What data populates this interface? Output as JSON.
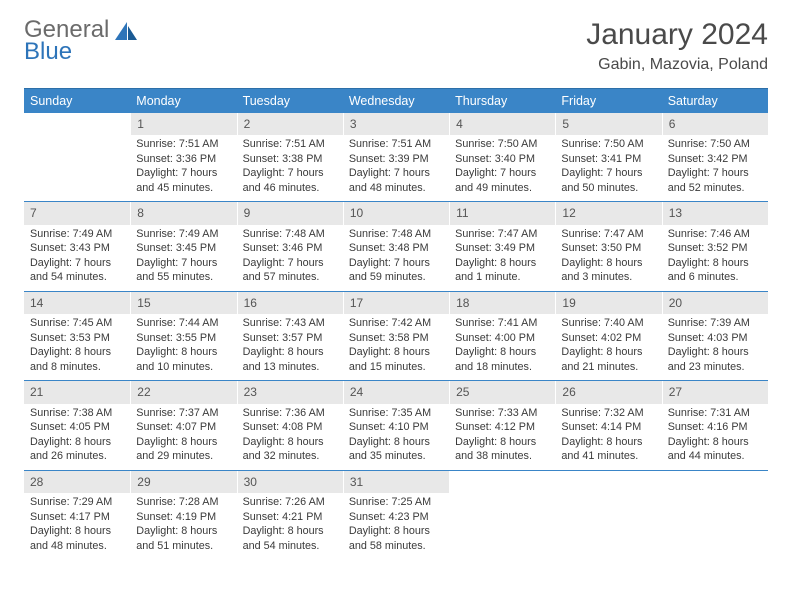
{
  "brand": {
    "part1": "General",
    "part2": "Blue"
  },
  "title": "January 2024",
  "location": "Gabin, Mazovia, Poland",
  "header_bg": "#3a85c7",
  "daynum_bg": "#e8e8e8",
  "divider_color": "#3a85c7",
  "weekdays": [
    "Sunday",
    "Monday",
    "Tuesday",
    "Wednesday",
    "Thursday",
    "Friday",
    "Saturday"
  ],
  "weeks": [
    [
      {
        "n": "",
        "lines": [
          "",
          "",
          "",
          ""
        ]
      },
      {
        "n": "1",
        "lines": [
          "Sunrise: 7:51 AM",
          "Sunset: 3:36 PM",
          "Daylight: 7 hours",
          "and 45 minutes."
        ]
      },
      {
        "n": "2",
        "lines": [
          "Sunrise: 7:51 AM",
          "Sunset: 3:38 PM",
          "Daylight: 7 hours",
          "and 46 minutes."
        ]
      },
      {
        "n": "3",
        "lines": [
          "Sunrise: 7:51 AM",
          "Sunset: 3:39 PM",
          "Daylight: 7 hours",
          "and 48 minutes."
        ]
      },
      {
        "n": "4",
        "lines": [
          "Sunrise: 7:50 AM",
          "Sunset: 3:40 PM",
          "Daylight: 7 hours",
          "and 49 minutes."
        ]
      },
      {
        "n": "5",
        "lines": [
          "Sunrise: 7:50 AM",
          "Sunset: 3:41 PM",
          "Daylight: 7 hours",
          "and 50 minutes."
        ]
      },
      {
        "n": "6",
        "lines": [
          "Sunrise: 7:50 AM",
          "Sunset: 3:42 PM",
          "Daylight: 7 hours",
          "and 52 minutes."
        ]
      }
    ],
    [
      {
        "n": "7",
        "lines": [
          "Sunrise: 7:49 AM",
          "Sunset: 3:43 PM",
          "Daylight: 7 hours",
          "and 54 minutes."
        ]
      },
      {
        "n": "8",
        "lines": [
          "Sunrise: 7:49 AM",
          "Sunset: 3:45 PM",
          "Daylight: 7 hours",
          "and 55 minutes."
        ]
      },
      {
        "n": "9",
        "lines": [
          "Sunrise: 7:48 AM",
          "Sunset: 3:46 PM",
          "Daylight: 7 hours",
          "and 57 minutes."
        ]
      },
      {
        "n": "10",
        "lines": [
          "Sunrise: 7:48 AM",
          "Sunset: 3:48 PM",
          "Daylight: 7 hours",
          "and 59 minutes."
        ]
      },
      {
        "n": "11",
        "lines": [
          "Sunrise: 7:47 AM",
          "Sunset: 3:49 PM",
          "Daylight: 8 hours",
          "and 1 minute."
        ]
      },
      {
        "n": "12",
        "lines": [
          "Sunrise: 7:47 AM",
          "Sunset: 3:50 PM",
          "Daylight: 8 hours",
          "and 3 minutes."
        ]
      },
      {
        "n": "13",
        "lines": [
          "Sunrise: 7:46 AM",
          "Sunset: 3:52 PM",
          "Daylight: 8 hours",
          "and 6 minutes."
        ]
      }
    ],
    [
      {
        "n": "14",
        "lines": [
          "Sunrise: 7:45 AM",
          "Sunset: 3:53 PM",
          "Daylight: 8 hours",
          "and 8 minutes."
        ]
      },
      {
        "n": "15",
        "lines": [
          "Sunrise: 7:44 AM",
          "Sunset: 3:55 PM",
          "Daylight: 8 hours",
          "and 10 minutes."
        ]
      },
      {
        "n": "16",
        "lines": [
          "Sunrise: 7:43 AM",
          "Sunset: 3:57 PM",
          "Daylight: 8 hours",
          "and 13 minutes."
        ]
      },
      {
        "n": "17",
        "lines": [
          "Sunrise: 7:42 AM",
          "Sunset: 3:58 PM",
          "Daylight: 8 hours",
          "and 15 minutes."
        ]
      },
      {
        "n": "18",
        "lines": [
          "Sunrise: 7:41 AM",
          "Sunset: 4:00 PM",
          "Daylight: 8 hours",
          "and 18 minutes."
        ]
      },
      {
        "n": "19",
        "lines": [
          "Sunrise: 7:40 AM",
          "Sunset: 4:02 PM",
          "Daylight: 8 hours",
          "and 21 minutes."
        ]
      },
      {
        "n": "20",
        "lines": [
          "Sunrise: 7:39 AM",
          "Sunset: 4:03 PM",
          "Daylight: 8 hours",
          "and 23 minutes."
        ]
      }
    ],
    [
      {
        "n": "21",
        "lines": [
          "Sunrise: 7:38 AM",
          "Sunset: 4:05 PM",
          "Daylight: 8 hours",
          "and 26 minutes."
        ]
      },
      {
        "n": "22",
        "lines": [
          "Sunrise: 7:37 AM",
          "Sunset: 4:07 PM",
          "Daylight: 8 hours",
          "and 29 minutes."
        ]
      },
      {
        "n": "23",
        "lines": [
          "Sunrise: 7:36 AM",
          "Sunset: 4:08 PM",
          "Daylight: 8 hours",
          "and 32 minutes."
        ]
      },
      {
        "n": "24",
        "lines": [
          "Sunrise: 7:35 AM",
          "Sunset: 4:10 PM",
          "Daylight: 8 hours",
          "and 35 minutes."
        ]
      },
      {
        "n": "25",
        "lines": [
          "Sunrise: 7:33 AM",
          "Sunset: 4:12 PM",
          "Daylight: 8 hours",
          "and 38 minutes."
        ]
      },
      {
        "n": "26",
        "lines": [
          "Sunrise: 7:32 AM",
          "Sunset: 4:14 PM",
          "Daylight: 8 hours",
          "and 41 minutes."
        ]
      },
      {
        "n": "27",
        "lines": [
          "Sunrise: 7:31 AM",
          "Sunset: 4:16 PM",
          "Daylight: 8 hours",
          "and 44 minutes."
        ]
      }
    ],
    [
      {
        "n": "28",
        "lines": [
          "Sunrise: 7:29 AM",
          "Sunset: 4:17 PM",
          "Daylight: 8 hours",
          "and 48 minutes."
        ]
      },
      {
        "n": "29",
        "lines": [
          "Sunrise: 7:28 AM",
          "Sunset: 4:19 PM",
          "Daylight: 8 hours",
          "and 51 minutes."
        ]
      },
      {
        "n": "30",
        "lines": [
          "Sunrise: 7:26 AM",
          "Sunset: 4:21 PM",
          "Daylight: 8 hours",
          "and 54 minutes."
        ]
      },
      {
        "n": "31",
        "lines": [
          "Sunrise: 7:25 AM",
          "Sunset: 4:23 PM",
          "Daylight: 8 hours",
          "and 58 minutes."
        ]
      },
      {
        "n": "",
        "lines": [
          "",
          "",
          "",
          ""
        ]
      },
      {
        "n": "",
        "lines": [
          "",
          "",
          "",
          ""
        ]
      },
      {
        "n": "",
        "lines": [
          "",
          "",
          "",
          ""
        ]
      }
    ]
  ]
}
